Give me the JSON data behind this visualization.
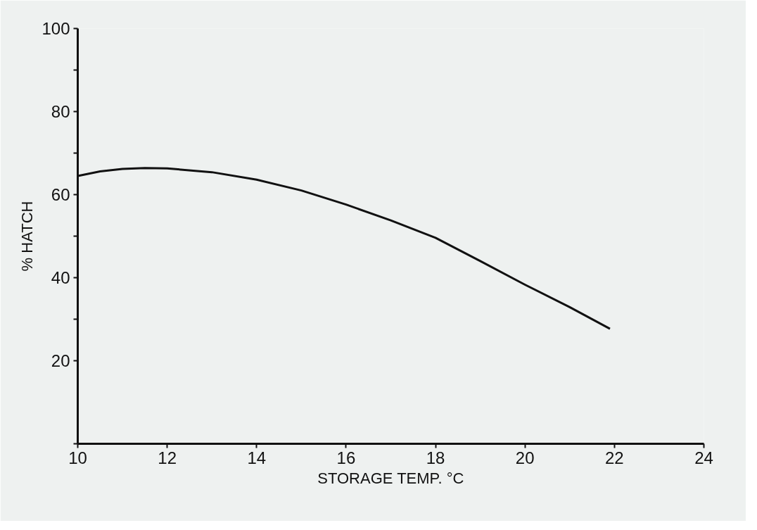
{
  "chart_data": {
    "type": "line",
    "xlabel": "STORAGE TEMP. °C",
    "ylabel": "% HATCH",
    "x": [
      10,
      10.5,
      11,
      11.5,
      12,
      13,
      14,
      15,
      16,
      17,
      18,
      19,
      20,
      21,
      21.9
    ],
    "series": [
      {
        "color": "#111111",
        "values": [
          64.5,
          65.6,
          66.2,
          66.4,
          66.3,
          65.4,
          63.6,
          61,
          57.6,
          53.8,
          49.6,
          44,
          38.3,
          32.9,
          27.7
        ]
      }
    ],
    "xlim": [
      10,
      24
    ],
    "xticks": [
      10,
      12,
      14,
      16,
      18,
      20,
      22,
      24
    ],
    "ylim": [
      0,
      100
    ],
    "yticks": [
      {
        "value": 0,
        "label": null
      },
      20,
      {
        "value": 30,
        "label": null
      },
      40,
      {
        "value": 50,
        "label": null
      },
      60,
      {
        "value": 70,
        "label": null
      },
      80,
      {
        "value": 90,
        "label": null
      },
      100
    ],
    "grid": false,
    "marker": "none",
    "line_style": "solid"
  }
}
